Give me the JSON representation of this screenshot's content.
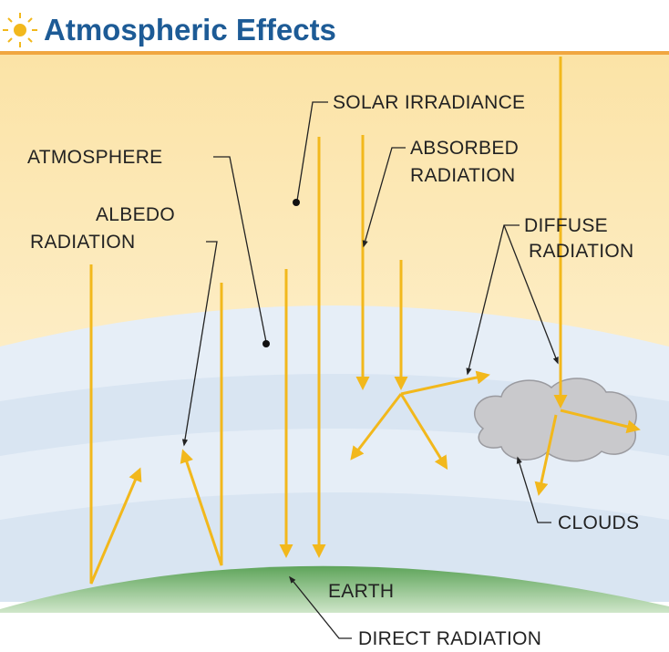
{
  "header": {
    "title": "Atmospheric Effects"
  },
  "labels": {
    "solar_irradiance": [
      "SOLAR IRRADIANCE"
    ],
    "atmosphere": [
      "ATMOSPHERE"
    ],
    "absorbed_radiation": [
      "ABSORBED",
      "RADIATION"
    ],
    "albedo_radiation": [
      "ALBEDO",
      "RADIATION"
    ],
    "diffuse_radiation": [
      "DIFFUSE",
      "RADIATION"
    ],
    "clouds": [
      "CLOUDS"
    ],
    "earth": [
      "EARTH"
    ],
    "direct_radiation": [
      "DIRECT RADIATION"
    ]
  }
}
